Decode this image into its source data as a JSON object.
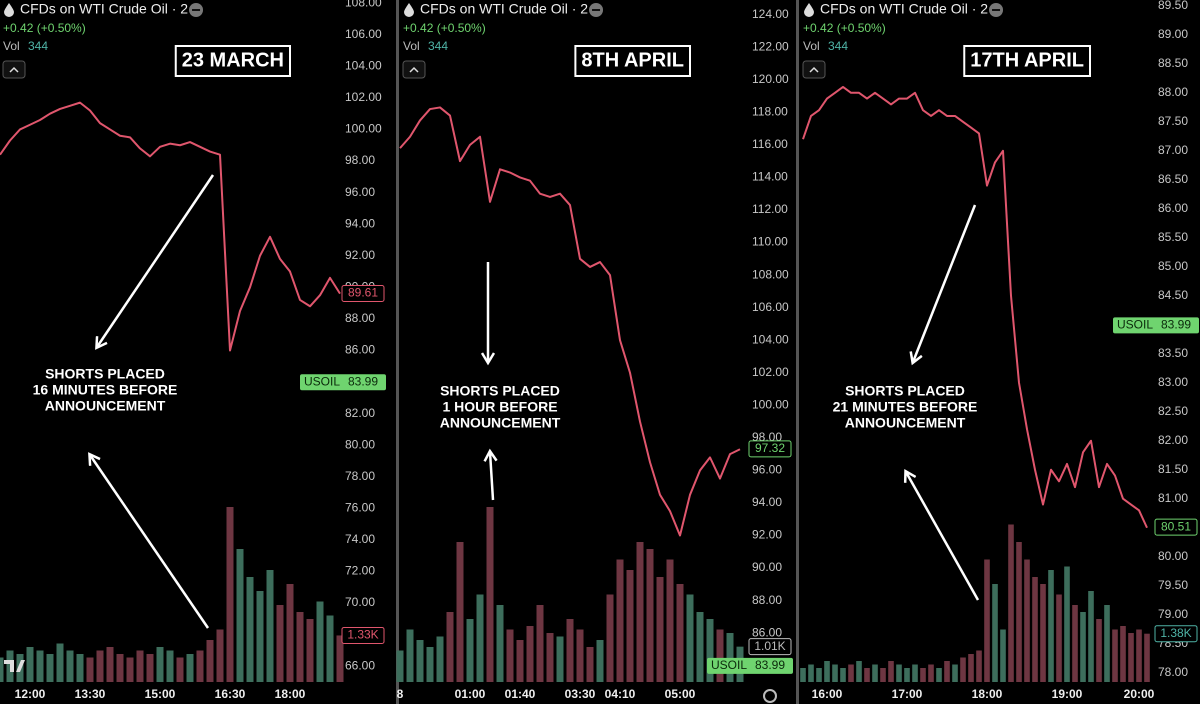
{
  "chart_data": [
    {
      "type": "line",
      "title": "CFDs on WTI Crude Oil · 2",
      "change": "+0.42 (+0.50%)",
      "volume_label": "Vol",
      "volume_value": 344,
      "date_label": "23 MARCH",
      "annotation": [
        "SHORTS PLACED",
        "16 MINUTES BEFORE",
        "ANNOUNCEMENT"
      ],
      "color": "#e0566d",
      "volume_colors": [
        "#3d6e5c",
        "#6e3642"
      ],
      "categories": [
        null,
        null,
        null,
        "12:00",
        null,
        null,
        null,
        null,
        null,
        "13:30",
        null,
        null,
        null,
        null,
        null,
        null,
        "15:00",
        null,
        null,
        null,
        null,
        null,
        null,
        "16:30",
        null,
        null,
        null,
        null,
        null,
        "18:00",
        null,
        null,
        null,
        null,
        null
      ],
      "values": [
        98.4,
        99.3,
        100.0,
        100.3,
        100.6,
        101.0,
        101.3,
        101.5,
        101.7,
        101.2,
        100.4,
        100.0,
        99.6,
        99.5,
        98.8,
        98.3,
        98.9,
        99.1,
        99.0,
        99.2,
        98.9,
        98.6,
        98.4,
        86.0,
        88.5,
        90.0,
        92.0,
        93.2,
        91.8,
        91.0,
        89.2,
        88.8,
        89.5,
        90.6,
        89.6
      ],
      "volume": [
        700,
        900,
        800,
        1000,
        900,
        800,
        1100,
        900,
        800,
        700,
        900,
        1000,
        800,
        700,
        900,
        800,
        1000,
        900,
        700,
        800,
        900,
        1200,
        1500,
        5000,
        3800,
        3000,
        2600,
        3200,
        2200,
        2800,
        2000,
        1800,
        2300,
        1900,
        1330
      ],
      "vlim": [
        0,
        6000
      ],
      "ylim": [
        65,
        108.2
      ],
      "yticks": [
        {
          "value": 66,
          "label": "66.00"
        },
        {
          "value": 68,
          "label": "68.00"
        },
        {
          "value": 70,
          "label": "70.00"
        },
        {
          "value": 72,
          "label": "72.00"
        },
        {
          "value": 74,
          "label": "74.00"
        },
        {
          "value": 76,
          "label": "76.00"
        },
        {
          "value": 78,
          "label": "78.00"
        },
        {
          "value": 80,
          "label": "80.00"
        },
        {
          "value": 82,
          "label": "82.00"
        },
        {
          "value": 84,
          "label": "84.00"
        },
        {
          "value": 86,
          "label": "86.00"
        },
        {
          "value": 88,
          "label": "88.00"
        },
        {
          "value": 90,
          "label": "90.00"
        },
        {
          "value": 92,
          "label": "92.00"
        },
        {
          "value": 94,
          "label": "94.00"
        },
        {
          "value": 96,
          "label": "96.00"
        },
        {
          "value": 98,
          "label": "98.00"
        },
        {
          "value": 100,
          "label": "100.00"
        },
        {
          "value": 102,
          "label": "102.00"
        },
        {
          "value": 104,
          "label": "104.00"
        },
        {
          "value": 106,
          "label": "106.00"
        },
        {
          "value": 108,
          "label": "108.00"
        }
      ],
      "last_price": 89.61,
      "last_price_color": "#e0566d",
      "symbol": "USOIL",
      "symbol_price": 83.99,
      "symbol_color": "#6fd46f",
      "volume_tag": {
        "value": 1330,
        "label": "1.33K"
      },
      "volume_tag_color": "#e0566d"
    },
    {
      "type": "line",
      "title": "CFDs on WTI Crude Oil · 2",
      "change": "+0.42 (+0.50%)",
      "volume_label": "Vol",
      "volume_value": 344,
      "date_label": "8TH APRIL",
      "annotation": [
        "SHORTS PLACED",
        "1 HOUR BEFORE",
        "ANNOUNCEMENT"
      ],
      "color": "#e0566d",
      "volume_colors": [
        "#3d6e5c",
        "#6e3642"
      ],
      "categories": [
        "8",
        null,
        null,
        null,
        null,
        null,
        null,
        "01:00",
        null,
        null,
        null,
        null,
        "01:40",
        null,
        null,
        null,
        null,
        null,
        "03:30",
        null,
        null,
        null,
        "04:10",
        null,
        null,
        null,
        null,
        null,
        "05:00",
        null,
        null,
        null,
        null,
        null,
        null
      ],
      "values": [
        115.8,
        116.5,
        117.5,
        118.2,
        118.3,
        117.8,
        115.0,
        116.0,
        116.5,
        112.5,
        114.5,
        114.3,
        114.0,
        113.8,
        113.0,
        112.8,
        113.0,
        112.3,
        109.0,
        108.5,
        108.8,
        108.0,
        104.0,
        102.0,
        99.0,
        96.5,
        94.5,
        93.5,
        92.0,
        94.5,
        96.0,
        96.8,
        95.5,
        97.0,
        97.3
      ],
      "volume": [
        900,
        1500,
        1200,
        1000,
        1300,
        2000,
        4000,
        1800,
        2500,
        5000,
        2200,
        1500,
        1200,
        1600,
        2200,
        1400,
        1300,
        1800,
        1500,
        1000,
        1200,
        2500,
        3500,
        3200,
        4000,
        3800,
        3000,
        3500,
        2800,
        2500,
        2000,
        1800,
        1500,
        1400,
        1010
      ],
      "vlim": [
        0,
        6000
      ],
      "ylim": [
        83,
        124.9
      ],
      "yticks": [
        {
          "value": 86,
          "label": "86.00"
        },
        {
          "value": 88,
          "label": "88.00"
        },
        {
          "value": 90,
          "label": "90.00"
        },
        {
          "value": 92,
          "label": "92.00"
        },
        {
          "value": 94,
          "label": "94.00"
        },
        {
          "value": 96,
          "label": "96.00"
        },
        {
          "value": 98,
          "label": "98.00"
        },
        {
          "value": 100,
          "label": "100.00"
        },
        {
          "value": 102,
          "label": "102.00"
        },
        {
          "value": 104,
          "label": "104.00"
        },
        {
          "value": 106,
          "label": "106.00"
        },
        {
          "value": 108,
          "label": "108.00"
        },
        {
          "value": 110,
          "label": "110.00"
        },
        {
          "value": 112,
          "label": "112.00"
        },
        {
          "value": 114,
          "label": "114.00"
        },
        {
          "value": 116,
          "label": "116.00"
        },
        {
          "value": 118,
          "label": "118.00"
        },
        {
          "value": 120,
          "label": "120.00"
        },
        {
          "value": 122,
          "label": "122.00"
        },
        {
          "value": 124,
          "label": "124.00"
        }
      ],
      "last_price": 97.32,
      "last_price_color": "#6fd46f",
      "symbol": "USOIL",
      "symbol_price": 83.99,
      "symbol_color": "#6fd46f",
      "volume_tag": {
        "value": 1010,
        "label": "1.01K"
      },
      "volume_tag_color": "#bbbbbb"
    },
    {
      "type": "line",
      "title": "CFDs on WTI Crude Oil · 2",
      "change": "+0.42 (+0.50%)",
      "volume_label": "Vol",
      "volume_value": 344,
      "date_label": "17TH APRIL",
      "annotation": [
        "SHORTS PLACED",
        "21 MINUTES BEFORE",
        "ANNOUNCEMENT"
      ],
      "color": "#e0566d",
      "volume_colors": [
        "#3d6e5c",
        "#6e3642"
      ],
      "categories": [
        null,
        null,
        null,
        "16:00",
        null,
        null,
        null,
        null,
        null,
        null,
        null,
        null,
        null,
        "17:00",
        null,
        null,
        null,
        null,
        null,
        null,
        null,
        null,
        null,
        "18:00",
        null,
        null,
        null,
        null,
        null,
        null,
        null,
        null,
        null,
        "19:00",
        null,
        null,
        null,
        null,
        null,
        null,
        null,
        null,
        "20:00",
        null
      ],
      "values": [
        87.2,
        87.6,
        87.7,
        87.9,
        88.0,
        88.1,
        88.0,
        88.0,
        87.9,
        88.0,
        87.9,
        87.8,
        87.9,
        87.9,
        88.0,
        87.7,
        87.6,
        87.7,
        87.6,
        87.6,
        87.5,
        87.4,
        87.3,
        86.4,
        86.8,
        87.0,
        84.5,
        83.0,
        82.2,
        81.5,
        80.9,
        81.5,
        81.3,
        81.6,
        81.2,
        81.8,
        82.0,
        81.2,
        81.6,
        81.4,
        81.0,
        80.9,
        80.8,
        80.5
      ],
      "volume": [
        400,
        500,
        400,
        600,
        500,
        400,
        500,
        600,
        400,
        500,
        400,
        600,
        500,
        400,
        500,
        400,
        500,
        400,
        600,
        500,
        700,
        800,
        900,
        3500,
        2800,
        1500,
        4500,
        4000,
        3500,
        3000,
        2800,
        3200,
        2500,
        3300,
        2200,
        2000,
        2600,
        1800,
        2200,
        1500,
        1600,
        1400,
        1500,
        1380
      ],
      "vlim": [
        0,
        6000
      ],
      "ylim": [
        77.84,
        89.6
      ],
      "yticks": [
        {
          "value": 78,
          "label": "78.00"
        },
        {
          "value": 78.5,
          "label": "78.50"
        },
        {
          "value": 79,
          "label": "79.00"
        },
        {
          "value": 79.5,
          "label": "79.50"
        },
        {
          "value": 80,
          "label": "80.00"
        },
        {
          "value": 80.5,
          "label": "80.50"
        },
        {
          "value": 81,
          "label": "81.00"
        },
        {
          "value": 81.5,
          "label": "81.50"
        },
        {
          "value": 82,
          "label": "82.00"
        },
        {
          "value": 82.5,
          "label": "82.50"
        },
        {
          "value": 83,
          "label": "83.00"
        },
        {
          "value": 83.5,
          "label": "83.50"
        },
        {
          "value": 84,
          "label": "84.00"
        },
        {
          "value": 84.5,
          "label": "84.50"
        },
        {
          "value": 85,
          "label": "85.00"
        },
        {
          "value": 85.5,
          "label": "85.50"
        },
        {
          "value": 86,
          "label": "86.00"
        },
        {
          "value": 86.5,
          "label": "86.50"
        },
        {
          "value": 87,
          "label": "87.00"
        },
        {
          "value": 87.5,
          "label": "87.50"
        },
        {
          "value": 88,
          "label": "88.00"
        },
        {
          "value": 88.5,
          "label": "88.50"
        },
        {
          "value": 89,
          "label": "89.00"
        },
        {
          "value": 89.5,
          "label": "89.50"
        }
      ],
      "last_price": 80.51,
      "last_price_color": "#6fd46f",
      "symbol": "USOIL",
      "symbol_price": 83.99,
      "symbol_color": "#6fd46f",
      "volume_tag": {
        "value": 1380,
        "label": "1.38K"
      },
      "volume_tag_color": "#4fb3a6"
    }
  ]
}
